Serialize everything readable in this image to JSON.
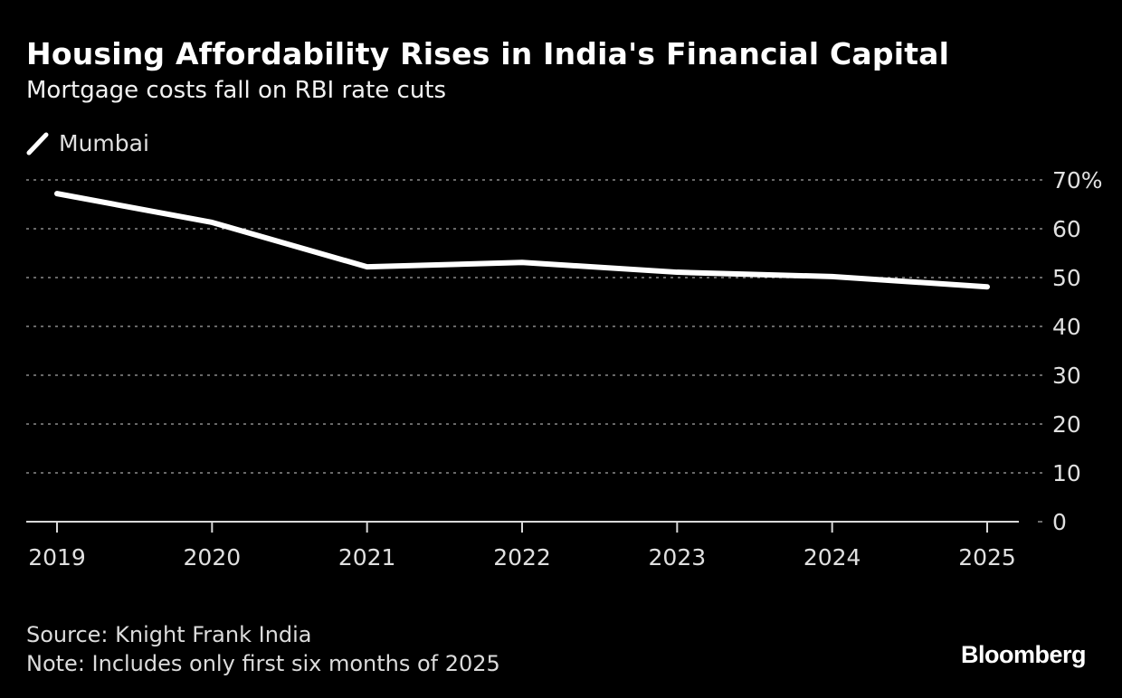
{
  "title": "Housing Affordability Rises in India's Financial Capital",
  "subtitle": "Mortgage costs fall on RBI rate cuts",
  "legend": [
    {
      "label": "Mumbai",
      "icon": "line-swatch-icon",
      "color": "#ffffff"
    }
  ],
  "footer": {
    "source": "Source: Knight Frank India",
    "note": "Note: Includes only first six months of 2025"
  },
  "brand": "Bloomberg",
  "colors": {
    "background": "#000000",
    "line": "#ffffff",
    "grid": "#8a8a8a",
    "text": "#e0e0e0"
  },
  "chart_data": {
    "type": "line",
    "title": "Housing Affordability Rises in India's Financial Capital",
    "subtitle": "Mortgage costs fall on RBI rate cuts",
    "xlabel": "",
    "ylabel": "",
    "x": [
      2019,
      2020,
      2021,
      2022,
      2023,
      2024,
      2025
    ],
    "series": [
      {
        "name": "Mumbai",
        "values": [
          67.2,
          61.3,
          52.2,
          53.1,
          51.1,
          50.2,
          48.1
        ]
      }
    ],
    "x_ticks": [
      "2019",
      "2020",
      "2021",
      "2022",
      "2023",
      "2024",
      "2025"
    ],
    "y_ticks": [
      0,
      10,
      20,
      30,
      40,
      50,
      60,
      70
    ],
    "y_tick_labels": [
      "0",
      "10",
      "20",
      "30",
      "40",
      "50",
      "60",
      "70%"
    ],
    "ylim": [
      0,
      70
    ],
    "xlim": [
      2019,
      2025
    ],
    "y_axis_side": "right",
    "grid": true,
    "legend_position": "top-left"
  }
}
